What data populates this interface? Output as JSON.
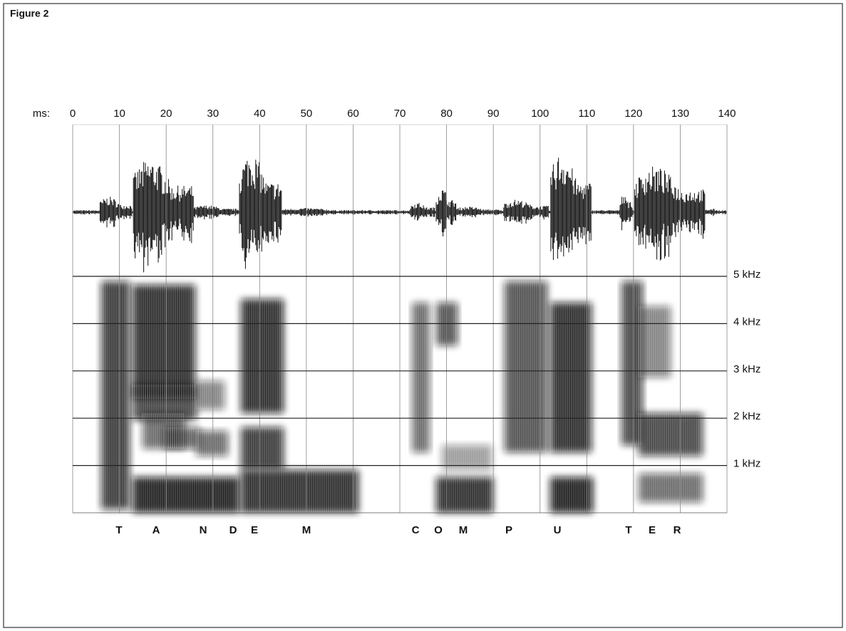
{
  "figure_label": "Figure 2",
  "time_axis": {
    "label": "ms:",
    "lim": [
      0,
      140
    ],
    "ticks": [
      0,
      10,
      20,
      30,
      40,
      50,
      60,
      70,
      80,
      90,
      100,
      110,
      120,
      130,
      140
    ]
  },
  "frequency_axis": {
    "lim": [
      0,
      5
    ],
    "ticks": [
      {
        "value": 5,
        "label": "5 kHz"
      },
      {
        "value": 4,
        "label": "4 kHz"
      },
      {
        "value": 3,
        "label": "3 kHz"
      },
      {
        "value": 2,
        "label": "2 kHz"
      },
      {
        "value": 1,
        "label": "1 kHz"
      }
    ]
  },
  "transcript": [
    "T",
    "A",
    "N",
    "D",
    "E",
    "M",
    "C",
    "O",
    "M",
    "P",
    "U",
    "T",
    "E",
    "R"
  ]
}
